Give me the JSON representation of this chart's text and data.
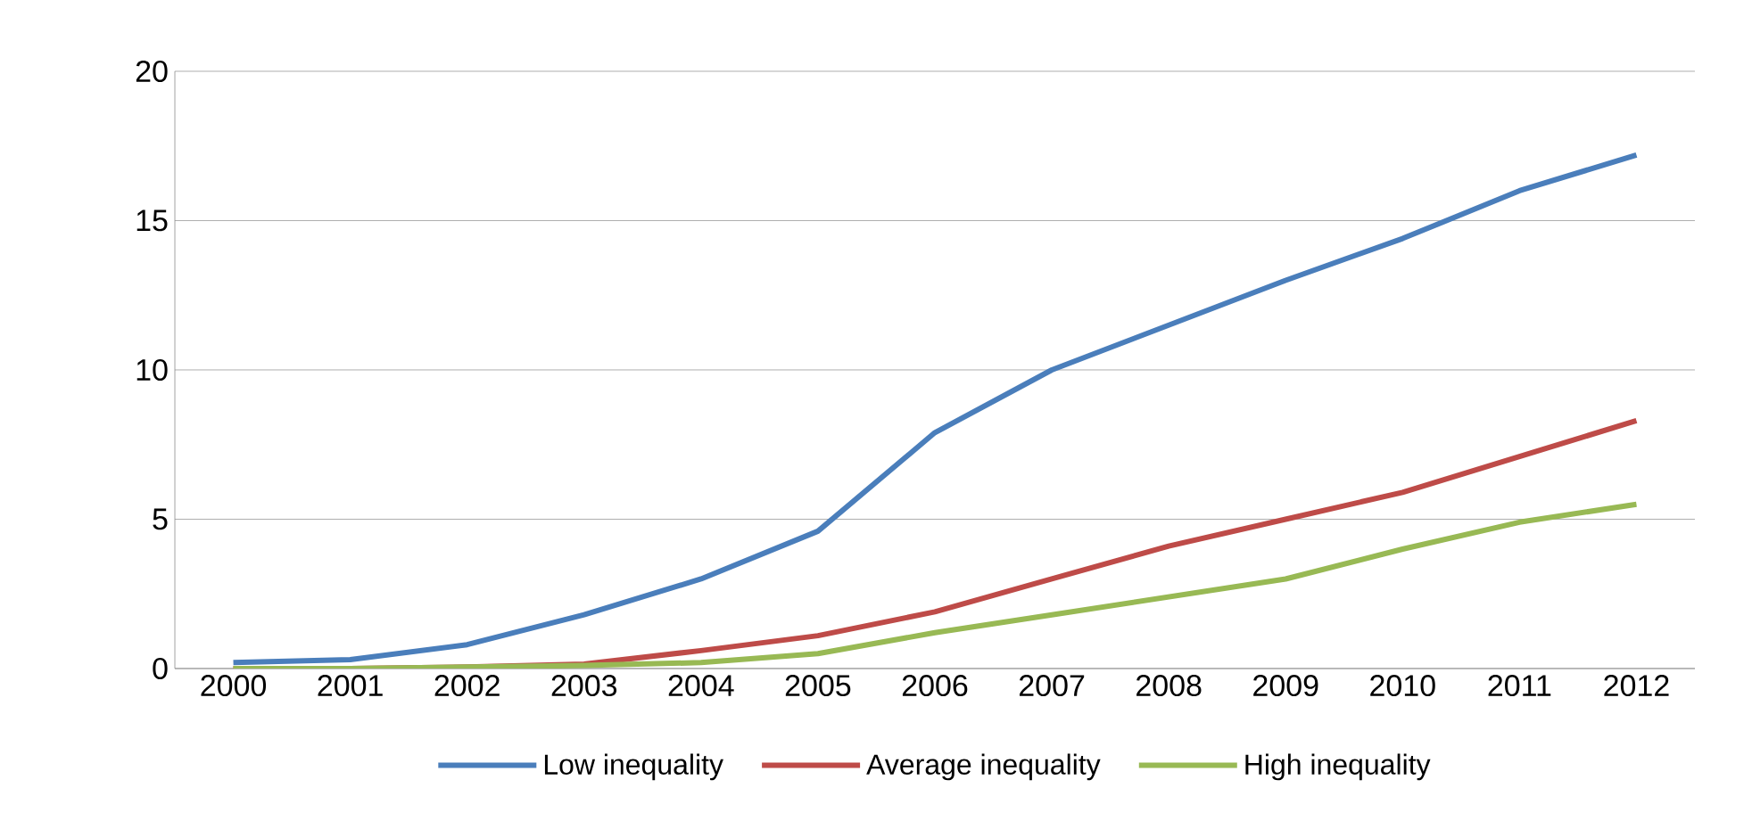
{
  "chart_data": {
    "type": "line",
    "categories": [
      "2000",
      "2001",
      "2002",
      "2003",
      "2004",
      "2005",
      "2006",
      "2007",
      "2008",
      "2009",
      "2010",
      "2011",
      "2012"
    ],
    "series": [
      {
        "name": "Low inequality",
        "color": "#4a7ebb",
        "values": [
          0.2,
          0.3,
          0.8,
          1.8,
          3.0,
          4.6,
          7.9,
          10.0,
          11.5,
          13.0,
          14.4,
          16.0,
          17.2
        ]
      },
      {
        "name": "Average inequality",
        "color": "#be4b48",
        "values": [
          0,
          0,
          0.05,
          0.15,
          0.6,
          1.1,
          1.9,
          3.0,
          4.1,
          5.0,
          5.9,
          7.1,
          8.3
        ]
      },
      {
        "name": "High inequality",
        "color": "#98b954",
        "values": [
          0,
          0,
          0.05,
          0.1,
          0.2,
          0.5,
          1.2,
          1.8,
          2.4,
          3.0,
          4.0,
          4.9,
          5.5
        ]
      }
    ],
    "ylim": [
      0,
      20
    ],
    "yticks": [
      0,
      5,
      10,
      15,
      20
    ],
    "grid": "y",
    "legend": "bottom",
    "marker": "none",
    "line_style": "solid"
  }
}
